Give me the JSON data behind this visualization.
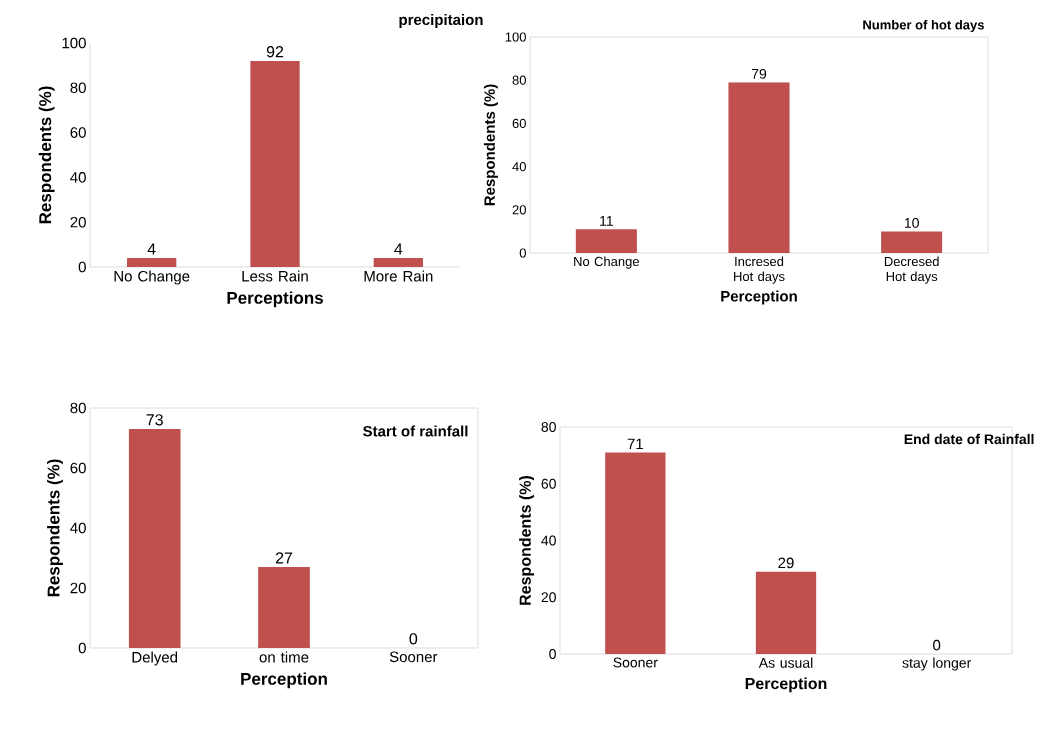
{
  "chart_data": [
    {
      "type": "bar",
      "title": "precipitaion",
      "categories": [
        "No Change",
        "Less Rain",
        "More Rain"
      ],
      "values": [
        4,
        92,
        4
      ],
      "color": "#c0504d",
      "ylim": [
        0,
        100
      ],
      "yticks": [
        0,
        20,
        40,
        60,
        80,
        100
      ],
      "xlabel": "Perceptions",
      "ylabel": "Respondents (%)",
      "data_labels": true
    },
    {
      "type": "bar",
      "title": "Number of hot days",
      "categories": [
        "No Change",
        "Incresed Hot days",
        "Decresed Hot days"
      ],
      "values": [
        11,
        79,
        10
      ],
      "color": "#c0504d",
      "ylim": [
        0,
        100
      ],
      "yticks": [
        0,
        20,
        40,
        60,
        80,
        100
      ],
      "xlabel": "Perception",
      "ylabel": "Respondents (%)",
      "data_labels": true
    },
    {
      "type": "bar",
      "title": "Start of rainfall",
      "categories": [
        "Delyed",
        "on time",
        "Sooner"
      ],
      "values": [
        73,
        27,
        0
      ],
      "color": "#c0504d",
      "ylim": [
        0,
        80
      ],
      "yticks": [
        0,
        20,
        40,
        60,
        80
      ],
      "xlabel": "Perception",
      "ylabel": "Respondents (%)",
      "data_labels": true
    },
    {
      "type": "bar",
      "title": "End date of Rainfall",
      "categories": [
        "Sooner",
        "As usual",
        "stay longer"
      ],
      "values": [
        71,
        29,
        0
      ],
      "color": "#c0504d",
      "ylim": [
        0,
        80
      ],
      "yticks": [
        0,
        20,
        40,
        60,
        80
      ],
      "xlabel": "Perception",
      "ylabel": "Respondents (%)",
      "data_labels": true
    }
  ]
}
